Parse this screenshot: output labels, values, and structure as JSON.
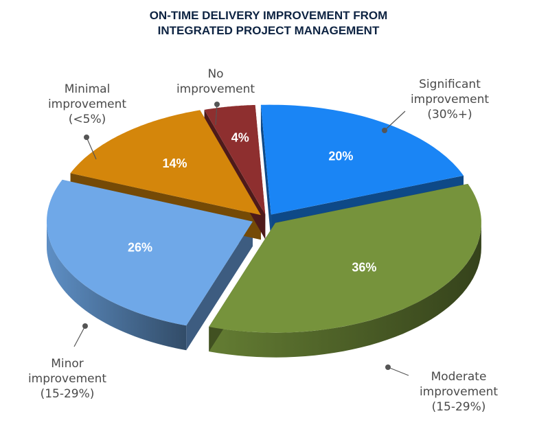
{
  "chart_data": {
    "type": "pie",
    "title": "ON-TIME DELIVERY IMPROVEMENT FROM INTEGRATED PROJECT MANAGEMENT",
    "title_lines": [
      "ON-TIME DELIVERY IMPROVEMENT FROM",
      "INTEGRATED PROJECT MANAGEMENT"
    ],
    "style": "3d-exploded",
    "legend": "none",
    "slices": [
      {
        "label": "Significant improvement (30%+)",
        "label_lines": [
          "Significant",
          "improvement",
          "(30%+)"
        ],
        "value": 20,
        "display": "20%",
        "color": "#1a85f5"
      },
      {
        "label": "Moderate improvement (15-29%)",
        "label_lines": [
          "Moderate",
          "improvement",
          "(15-29%)"
        ],
        "value": 36,
        "display": "36%",
        "color": "#76933c"
      },
      {
        "label": "Minor improvement (15-29%)",
        "label_lines": [
          "Minor",
          "improvement",
          "(15-29%)"
        ],
        "value": 26,
        "display": "26%",
        "color": "#6fa8e8"
      },
      {
        "label": "Minimal improvement (<5%)",
        "label_lines": [
          "Minimal",
          "improvement",
          "(<5%)"
        ],
        "value": 14,
        "display": "14%",
        "color": "#d4860b"
      },
      {
        "label": "No improvement",
        "label_lines": [
          "No",
          "improvement"
        ],
        "value": 4,
        "display": "4%",
        "color": "#8e2f2f"
      }
    ]
  }
}
